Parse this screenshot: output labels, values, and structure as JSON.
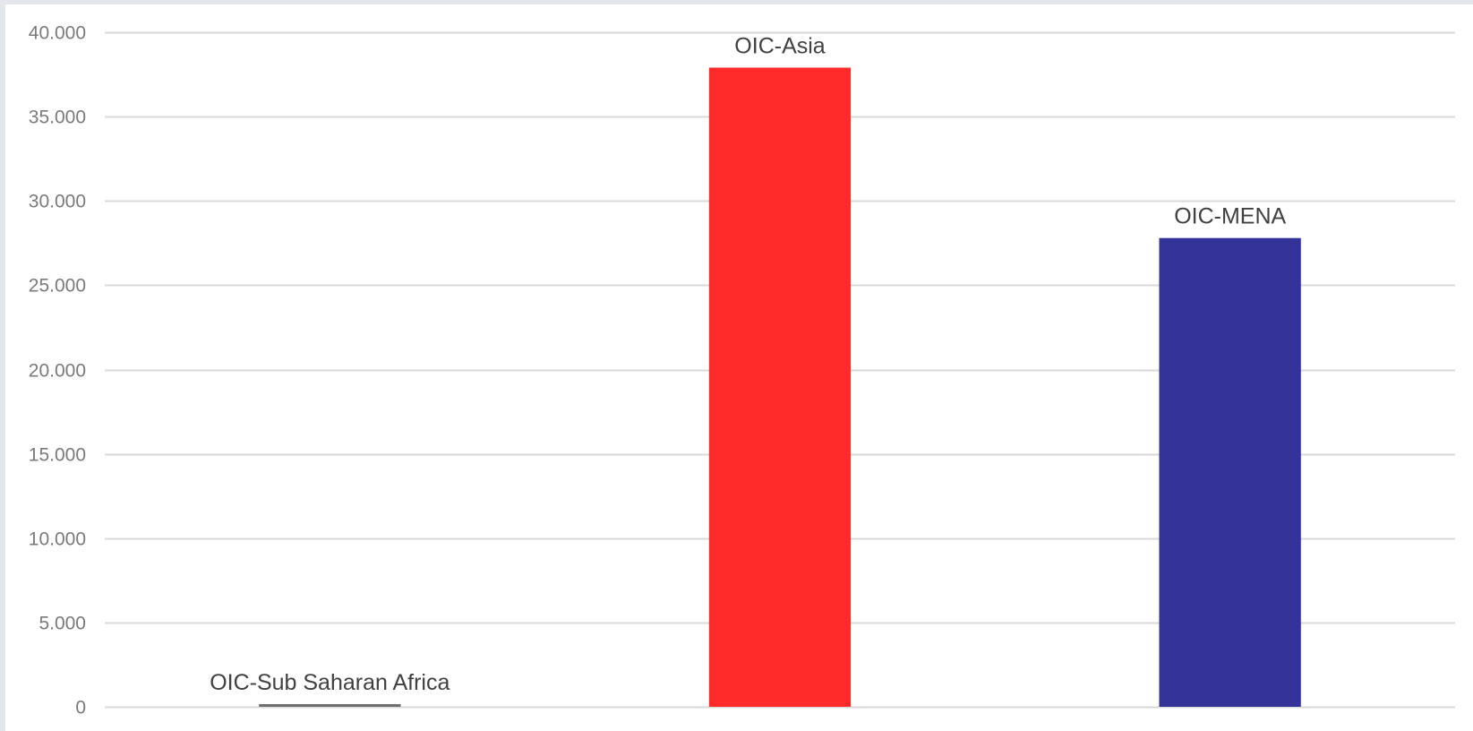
{
  "chart_data": {
    "type": "bar",
    "categories": [
      "OIC-Sub Saharan Africa",
      "OIC-Asia",
      "OIC-MENA"
    ],
    "values": [
      150,
      37900,
      27800
    ],
    "colors": [
      "#6e6e6e",
      "#ff2a2a",
      "#333399"
    ],
    "ylim": [
      0,
      40000
    ],
    "yticks": [
      0,
      5000,
      10000,
      15000,
      20000,
      25000,
      30000,
      35000,
      40000
    ],
    "ytick_labels": [
      "0",
      "5.000",
      "10.000",
      "15.000",
      "20.000",
      "25.000",
      "30.000",
      "35.000",
      "40.000"
    ],
    "grid": true,
    "gridline_color": "#d9d9d9",
    "title": "",
    "xlabel": "",
    "ylabel": "",
    "legend": "none"
  }
}
